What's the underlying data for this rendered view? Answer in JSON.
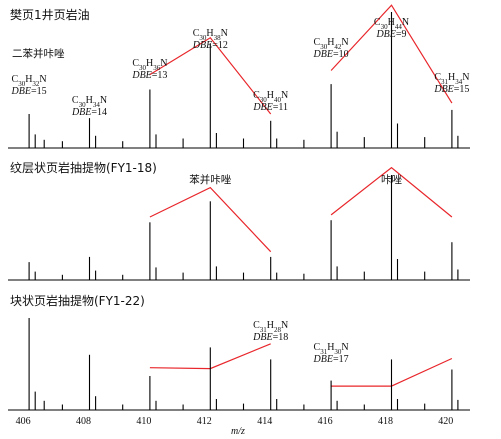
{
  "chart_data": {
    "type": "mass-spectrum",
    "xlabel": "m/z",
    "xlim": [
      405.5,
      420.8
    ],
    "x_ticks": [
      406,
      408,
      410,
      412,
      414,
      416,
      418,
      420
    ],
    "colors": {
      "peaks": "#000000",
      "trend_lines": "#e8262b"
    },
    "panels": [
      {
        "title": "樊页1井页岩油",
        "subtitle": "二苯并咔唑",
        "peaks": [
          {
            "x": 406.2,
            "y": 0.25
          },
          {
            "x": 406.4,
            "y": 0.1
          },
          {
            "x": 406.7,
            "y": 0.06
          },
          {
            "x": 407.3,
            "y": 0.05
          },
          {
            "x": 408.2,
            "y": 0.22
          },
          {
            "x": 408.4,
            "y": 0.09
          },
          {
            "x": 409.3,
            "y": 0.05
          },
          {
            "x": 410.2,
            "y": 0.43
          },
          {
            "x": 410.4,
            "y": 0.1
          },
          {
            "x": 411.3,
            "y": 0.07
          },
          {
            "x": 412.2,
            "y": 0.77
          },
          {
            "x": 412.4,
            "y": 0.11
          },
          {
            "x": 413.3,
            "y": 0.07
          },
          {
            "x": 414.2,
            "y": 0.2
          },
          {
            "x": 414.4,
            "y": 0.07
          },
          {
            "x": 415.3,
            "y": 0.06
          },
          {
            "x": 416.2,
            "y": 0.47
          },
          {
            "x": 416.4,
            "y": 0.12
          },
          {
            "x": 417.3,
            "y": 0.08
          },
          {
            "x": 418.2,
            "y": 1.0
          },
          {
            "x": 418.4,
            "y": 0.18
          },
          {
            "x": 419.3,
            "y": 0.08
          },
          {
            "x": 420.2,
            "y": 0.28
          },
          {
            "x": 420.4,
            "y": 0.09
          }
        ],
        "trend_lines": [
          [
            {
              "x": 410.2,
              "y": 0.54
            },
            {
              "x": 412.2,
              "y": 0.81
            },
            {
              "x": 414.2,
              "y": 0.25
            }
          ],
          [
            {
              "x": 416.2,
              "y": 0.57
            },
            {
              "x": 418.2,
              "y": 1.05
            },
            {
              "x": 420.2,
              "y": 0.33
            }
          ]
        ],
        "annotations": [
          {
            "x": 406.2,
            "c": "30",
            "h": "32",
            "dbe": "15"
          },
          {
            "x": 408.2,
            "c": "30",
            "h": "34",
            "dbe": "14"
          },
          {
            "x": 410.2,
            "c": "30",
            "h": "36",
            "dbe": "13"
          },
          {
            "x": 412.2,
            "c": "30",
            "h": "38",
            "dbe": "12"
          },
          {
            "x": 414.2,
            "c": "30",
            "h": "40",
            "dbe": "11"
          },
          {
            "x": 416.2,
            "c": "30",
            "h": "42",
            "dbe": "10"
          },
          {
            "x": 418.2,
            "c": "30",
            "h": "44",
            "dbe": "9"
          },
          {
            "x": 420.2,
            "c": "31",
            "h": "34",
            "dbe": "15"
          }
        ]
      },
      {
        "title": "纹层状页岩抽提物(FY1-18)",
        "peaks": [
          {
            "x": 406.2,
            "y": 0.17
          },
          {
            "x": 406.4,
            "y": 0.08
          },
          {
            "x": 407.3,
            "y": 0.05
          },
          {
            "x": 408.2,
            "y": 0.22
          },
          {
            "x": 408.4,
            "y": 0.09
          },
          {
            "x": 409.3,
            "y": 0.05
          },
          {
            "x": 410.2,
            "y": 0.55
          },
          {
            "x": 410.4,
            "y": 0.12
          },
          {
            "x": 411.3,
            "y": 0.07
          },
          {
            "x": 412.2,
            "y": 0.75
          },
          {
            "x": 412.4,
            "y": 0.13
          },
          {
            "x": 413.3,
            "y": 0.07
          },
          {
            "x": 414.2,
            "y": 0.22
          },
          {
            "x": 414.4,
            "y": 0.07
          },
          {
            "x": 415.3,
            "y": 0.06
          },
          {
            "x": 416.2,
            "y": 0.57
          },
          {
            "x": 416.4,
            "y": 0.13
          },
          {
            "x": 417.3,
            "y": 0.08
          },
          {
            "x": 418.2,
            "y": 1.0
          },
          {
            "x": 418.4,
            "y": 0.2
          },
          {
            "x": 419.3,
            "y": 0.08
          },
          {
            "x": 420.2,
            "y": 0.36
          },
          {
            "x": 420.4,
            "y": 0.1
          }
        ],
        "trend_lines": [
          [
            {
              "x": 410.2,
              "y": 0.6
            },
            {
              "x": 412.2,
              "y": 0.88
            },
            {
              "x": 414.2,
              "y": 0.27
            }
          ],
          [
            {
              "x": 416.2,
              "y": 0.62
            },
            {
              "x": 418.2,
              "y": 1.07
            },
            {
              "x": 420.2,
              "y": 0.6
            }
          ]
        ],
        "labels": [
          {
            "x": 412.2,
            "text": "苯并咔唑"
          },
          {
            "x": 418.2,
            "text": "咔唑"
          }
        ]
      },
      {
        "title": "块状页岩抽提物(FY1-22)",
        "peaks": [
          {
            "x": 406.2,
            "y": 1.0
          },
          {
            "x": 406.4,
            "y": 0.2
          },
          {
            "x": 406.7,
            "y": 0.1
          },
          {
            "x": 407.3,
            "y": 0.06
          },
          {
            "x": 408.2,
            "y": 0.6
          },
          {
            "x": 408.4,
            "y": 0.15
          },
          {
            "x": 409.3,
            "y": 0.06
          },
          {
            "x": 410.2,
            "y": 0.37
          },
          {
            "x": 410.4,
            "y": 0.1
          },
          {
            "x": 411.3,
            "y": 0.06
          },
          {
            "x": 412.2,
            "y": 0.68
          },
          {
            "x": 412.4,
            "y": 0.12
          },
          {
            "x": 413.3,
            "y": 0.07
          },
          {
            "x": 414.2,
            "y": 0.55
          },
          {
            "x": 414.4,
            "y": 0.12
          },
          {
            "x": 415.3,
            "y": 0.06
          },
          {
            "x": 416.2,
            "y": 0.32
          },
          {
            "x": 416.4,
            "y": 0.1
          },
          {
            "x": 417.3,
            "y": 0.06
          },
          {
            "x": 418.2,
            "y": 0.55
          },
          {
            "x": 418.4,
            "y": 0.12
          },
          {
            "x": 419.3,
            "y": 0.07
          },
          {
            "x": 420.2,
            "y": 0.44
          },
          {
            "x": 420.4,
            "y": 0.11
          }
        ],
        "trend_lines": [
          [
            {
              "x": 410.2,
              "y": 0.46
            },
            {
              "x": 412.2,
              "y": 0.45
            },
            {
              "x": 414.2,
              "y": 0.72
            }
          ],
          [
            {
              "x": 416.2,
              "y": 0.26
            },
            {
              "x": 418.2,
              "y": 0.26
            },
            {
              "x": 420.2,
              "y": 0.56
            }
          ]
        ],
        "annotations": [
          {
            "x": 414.2,
            "c": "31",
            "h": "28",
            "dbe": "18"
          },
          {
            "x": 416.2,
            "c": "31",
            "h": "30",
            "dbe": "17"
          }
        ]
      }
    ]
  }
}
